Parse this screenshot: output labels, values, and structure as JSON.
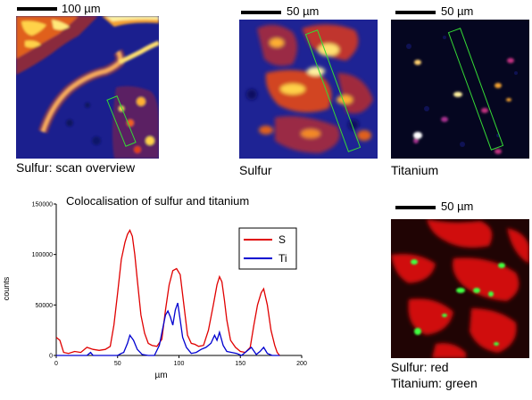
{
  "panels": {
    "overview": {
      "scale_label": "100 µm",
      "caption": "Sulfur: scan overview"
    },
    "sulfur": {
      "scale_label": "50 µm",
      "caption": "Sulfur"
    },
    "titanium": {
      "scale_label": "50 µm",
      "caption": "Titanium"
    },
    "overlay": {
      "scale_label": "50 µm",
      "caption_line1": "Sulfur: red",
      "caption_line2": "Titanium: green"
    }
  },
  "colors": {
    "heat_background": "#1a1f8c",
    "heat_hot": "#ffe87a",
    "sulfur_red": "#e01414",
    "titanium_green": "#40ff40",
    "roi_box": "#35d835"
  },
  "chart_data": {
    "type": "line",
    "title": "Colocalisation of sulfur and titanium",
    "xlabel": "µm",
    "ylabel": "counts",
    "xlim": [
      0,
      200
    ],
    "ylim": [
      0,
      150000
    ],
    "xticks": [
      0,
      50,
      100,
      150,
      200
    ],
    "yticks": [
      0,
      50000,
      100000,
      150000
    ],
    "legend_position": "top-right",
    "series": [
      {
        "name": "S",
        "color": "#e00000",
        "x": [
          0,
          3,
          6,
          10,
          15,
          20,
          25,
          30,
          35,
          40,
          44,
          47,
          50,
          53,
          56,
          58,
          60,
          62,
          64,
          66,
          69,
          72,
          75,
          78,
          82,
          86,
          89,
          92,
          95,
          98,
          101,
          104,
          107,
          110,
          113,
          116,
          120,
          124,
          128,
          131,
          133,
          135,
          137,
          139,
          142,
          146,
          150,
          154,
          158,
          161,
          164,
          167,
          169,
          172,
          175,
          178,
          180,
          182
        ],
        "y": [
          18000,
          15000,
          3000,
          2000,
          4000,
          3000,
          8000,
          6000,
          5000,
          6000,
          9000,
          30000,
          62000,
          95000,
          112000,
          120000,
          124000,
          118000,
          100000,
          75000,
          40000,
          22000,
          12000,
          10000,
          9000,
          16000,
          45000,
          70000,
          84000,
          86000,
          80000,
          50000,
          20000,
          12000,
          11000,
          9000,
          10000,
          25000,
          50000,
          70000,
          78000,
          73000,
          55000,
          35000,
          15000,
          8000,
          4000,
          3000,
          8000,
          30000,
          50000,
          62000,
          66000,
          50000,
          25000,
          10000,
          3000,
          0
        ]
      },
      {
        "name": "Ti",
        "color": "#0000d0",
        "x": [
          0,
          5,
          10,
          15,
          20,
          25,
          28,
          30,
          35,
          40,
          45,
          50,
          53,
          55,
          58,
          60,
          63,
          66,
          70,
          75,
          80,
          84,
          87,
          89,
          91,
          93,
          95,
          97,
          99,
          101,
          103,
          106,
          110,
          114,
          118,
          122,
          126,
          129,
          131,
          133,
          136,
          139,
          143,
          147,
          151,
          155,
          159,
          163,
          166,
          169,
          172,
          176,
          180,
          182
        ],
        "y": [
          0,
          0,
          0,
          0,
          0,
          0,
          3000,
          0,
          0,
          0,
          0,
          0,
          2000,
          3000,
          12000,
          20000,
          15000,
          6000,
          1000,
          0,
          0,
          10000,
          28000,
          40000,
          44000,
          38000,
          30000,
          45000,
          52000,
          35000,
          18000,
          8000,
          2000,
          3000,
          6000,
          8000,
          12000,
          20000,
          15000,
          23000,
          10000,
          4000,
          3000,
          2000,
          0,
          4000,
          8000,
          1000,
          4000,
          8000,
          2000,
          0,
          0,
          0
        ]
      }
    ]
  }
}
